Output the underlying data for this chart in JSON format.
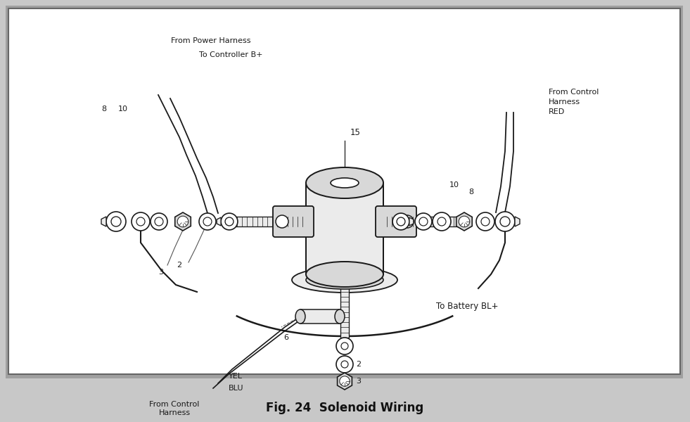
{
  "title": "Fig. 24  Solenoid Wiring",
  "title_fontsize": 12,
  "title_fontweight": "bold",
  "line_color": "#1a1a1a",
  "fill_light": "#ebebeb",
  "fill_mid": "#d8d8d8",
  "fill_dark": "#c0c0c0",
  "white": "#ffffff",
  "bg_outer": "#c8c8c8",
  "bg_inner": "#ffffff",
  "labels": {
    "from_power_harness": "From Power Harness",
    "to_controller": "To Controller B+",
    "label_15": "15",
    "label_8_left": "8",
    "label_10_left": "10",
    "label_3_left": "3",
    "label_2_left": "2",
    "label_6": "6",
    "label_yel": "YEL",
    "label_blu": "BLU",
    "from_control_harness_left": "From Control\nHarness",
    "from_control_harness_right": "From Control\nHarness\nRED",
    "label_10_right": "10",
    "label_8_right": "8",
    "label_2_right": "2",
    "label_3_right": "3",
    "to_battery": "To Battery BL+"
  }
}
